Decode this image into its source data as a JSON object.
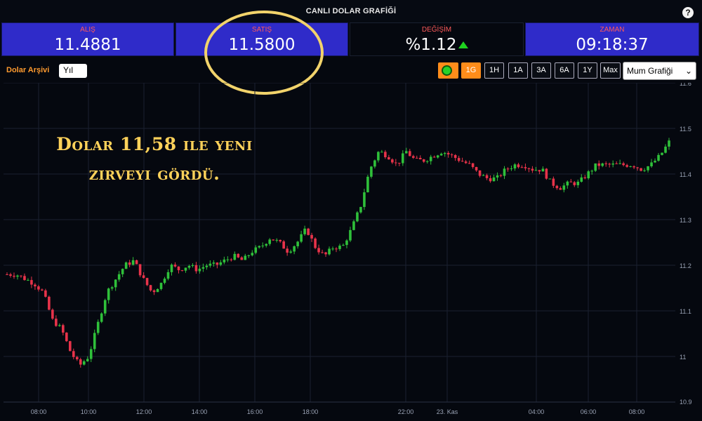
{
  "header": {
    "title": "CANLI DOLAR GRAFİĞİ",
    "help_label": "?"
  },
  "stats": {
    "alis": {
      "label": "ALIŞ",
      "value": "11.4881"
    },
    "satis": {
      "label": "SATIŞ",
      "value": "11.5800"
    },
    "degisim": {
      "label": "DEĞİŞİM",
      "value": "%1.12"
    },
    "zaman": {
      "label": "ZAMAN",
      "value": "09:18:37"
    }
  },
  "toolbar": {
    "archive_label": "Dolar Arşivi",
    "period_value": "Yıl",
    "range_buttons": [
      "1G",
      "1H",
      "1A",
      "3A",
      "6A",
      "1Y",
      "Max"
    ],
    "active_range": "1G",
    "chart_type_value": "Mum Grafiği",
    "chart_type_chevron": "⌄"
  },
  "annotation": {
    "line1": "Dolar 11,58 ile yeni",
    "line2": "zirveyi gördü."
  },
  "colors": {
    "up": "#2fc03a",
    "down": "#e8334a",
    "panel": "#2f2bc9",
    "accent": "#ff8c1a",
    "label": "#ff5a5a",
    "highlight": "#f2d36b"
  },
  "chart_data": {
    "type": "candlestick",
    "y_ticks": [
      "11.6",
      "11.5",
      "11.4",
      "11.3",
      "11.2",
      "11.1",
      "11",
      "10.9"
    ],
    "ylim": [
      10.9,
      11.6
    ],
    "x_ticks": [
      "08:00",
      "10:00",
      "12:00",
      "14:00",
      "16:00",
      "18:00",
      "22:00",
      "23. Kas",
      "04:00",
      "06:00",
      "08:00"
    ],
    "grid": true,
    "close_trace": [
      [
        "07:00",
        11.18
      ],
      [
        "07:30",
        11.18
      ],
      [
        "07:45",
        11.17
      ],
      [
        "08:00",
        11.16
      ],
      [
        "08:15",
        11.14
      ],
      [
        "08:30",
        11.08
      ],
      [
        "08:45",
        11.06
      ],
      [
        "09:00",
        11.01
      ],
      [
        "09:10",
        10.98
      ],
      [
        "09:20",
        11.0
      ],
      [
        "09:40",
        11.07
      ],
      [
        "10:00",
        11.14
      ],
      [
        "10:15",
        11.17
      ],
      [
        "10:30",
        11.2
      ],
      [
        "10:45",
        11.21
      ],
      [
        "11:00",
        11.17
      ],
      [
        "11:15",
        11.14
      ],
      [
        "11:30",
        11.16
      ],
      [
        "12:00",
        11.2
      ],
      [
        "12:30",
        11.19
      ],
      [
        "13:00",
        11.2
      ],
      [
        "13:30",
        11.19
      ],
      [
        "14:00",
        11.2
      ],
      [
        "14:30",
        11.2
      ],
      [
        "15:00",
        11.21
      ],
      [
        "15:30",
        11.22
      ],
      [
        "16:00",
        11.21
      ],
      [
        "16:30",
        11.23
      ],
      [
        "17:00",
        11.24
      ],
      [
        "17:15",
        11.26
      ],
      [
        "17:30",
        11.25
      ],
      [
        "17:45",
        11.23
      ],
      [
        "18:00",
        11.25
      ],
      [
        "18:15",
        11.28
      ],
      [
        "18:30",
        11.24
      ],
      [
        "18:45",
        11.22
      ],
      [
        "19:00",
        11.24
      ],
      [
        "19:30",
        11.24
      ],
      [
        "19:45",
        11.28
      ],
      [
        "20:00",
        11.33
      ],
      [
        "20:15",
        11.41
      ],
      [
        "20:30",
        11.45
      ],
      [
        "20:45",
        11.44
      ],
      [
        "21:00",
        11.42
      ],
      [
        "21:15",
        11.45
      ],
      [
        "21:30",
        11.43
      ],
      [
        "22:00",
        11.43
      ],
      [
        "22:15",
        11.44
      ],
      [
        "22:30",
        11.45
      ],
      [
        "23:00",
        11.44
      ],
      [
        "23:30",
        11.43
      ],
      [
        "00:00",
        11.42
      ],
      [
        "00:30",
        11.4
      ],
      [
        "01:00",
        11.39
      ],
      [
        "01:30",
        11.39
      ],
      [
        "02:00",
        11.41
      ],
      [
        "02:30",
        11.42
      ],
      [
        "03:00",
        11.42
      ],
      [
        "03:30",
        11.41
      ],
      [
        "04:00",
        11.41
      ],
      [
        "04:30",
        11.38
      ],
      [
        "04:45",
        11.37
      ],
      [
        "05:00",
        11.38
      ],
      [
        "05:30",
        11.38
      ],
      [
        "05:45",
        11.4
      ],
      [
        "06:00",
        11.42
      ],
      [
        "06:30",
        11.42
      ],
      [
        "07:00",
        11.42
      ],
      [
        "07:30",
        11.42
      ],
      [
        "08:00",
        11.42
      ],
      [
        "08:30",
        11.41
      ],
      [
        "08:45",
        11.42
      ],
      [
        "09:00",
        11.44
      ],
      [
        "09:10",
        11.47
      ]
    ]
  }
}
